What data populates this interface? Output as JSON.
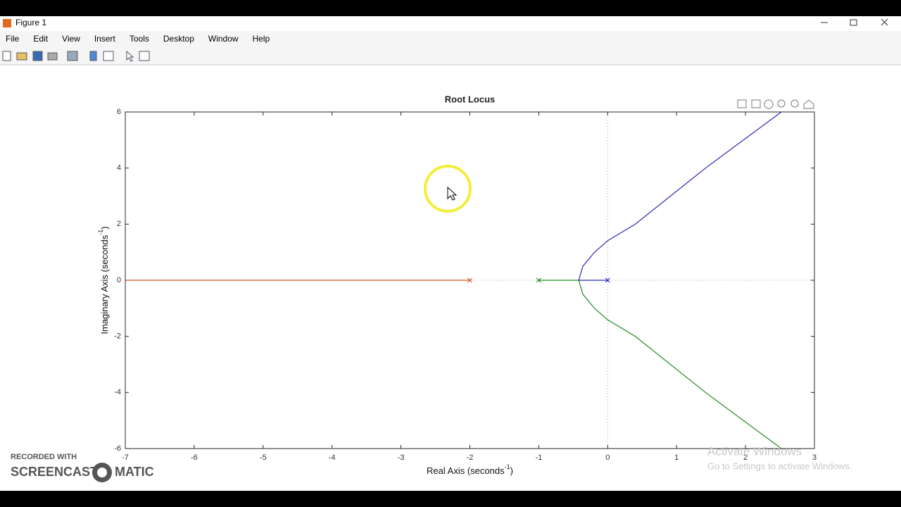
{
  "window": {
    "title": "Figure 1",
    "menu": [
      "File",
      "Edit",
      "View",
      "Insert",
      "Tools",
      "Desktop",
      "Window",
      "Help"
    ]
  },
  "chart_data": {
    "type": "line",
    "title": "Root Locus",
    "xlabel": {
      "text": "Real Axis (seconds",
      "superscript": "-1",
      "close": ")"
    },
    "ylabel": {
      "text": "Imaginary Axis (seconds",
      "superscript": "-1",
      "close": ")"
    },
    "xlim": [
      -7,
      3
    ],
    "ylim": [
      -6,
      6
    ],
    "xticks": [
      -7,
      -6,
      -5,
      -4,
      -3,
      -2,
      -1,
      0,
      1,
      2,
      3
    ],
    "yticks": [
      -6,
      -4,
      -2,
      0,
      2,
      4,
      6
    ],
    "series": [
      {
        "color": "#d95319",
        "x": [
          -2,
          -7
        ],
        "values": [
          0,
          0
        ]
      },
      {
        "color": "#1f8a1f",
        "x": [
          -1,
          -0.42,
          -0.36,
          -0.19,
          0,
          0.4,
          1.42,
          2.52
        ],
        "values": [
          0,
          0,
          -0.5,
          -1,
          -1.41,
          -2,
          -4,
          -6
        ]
      },
      {
        "color": "#2a2ab8",
        "x": [
          0,
          -0.42,
          -0.36,
          -0.19,
          0,
          0.4,
          1.42,
          2.52
        ],
        "values": [
          0,
          0,
          0.5,
          1,
          1.41,
          2,
          4,
          6
        ]
      }
    ]
  },
  "watermark": {
    "recorded": "RECORDED WITH",
    "brand_left": "SCREENCAST",
    "brand_right": "MATIC"
  },
  "activation": {
    "title": "Activate Windows",
    "message": "Go to Settings to activate Windows."
  }
}
